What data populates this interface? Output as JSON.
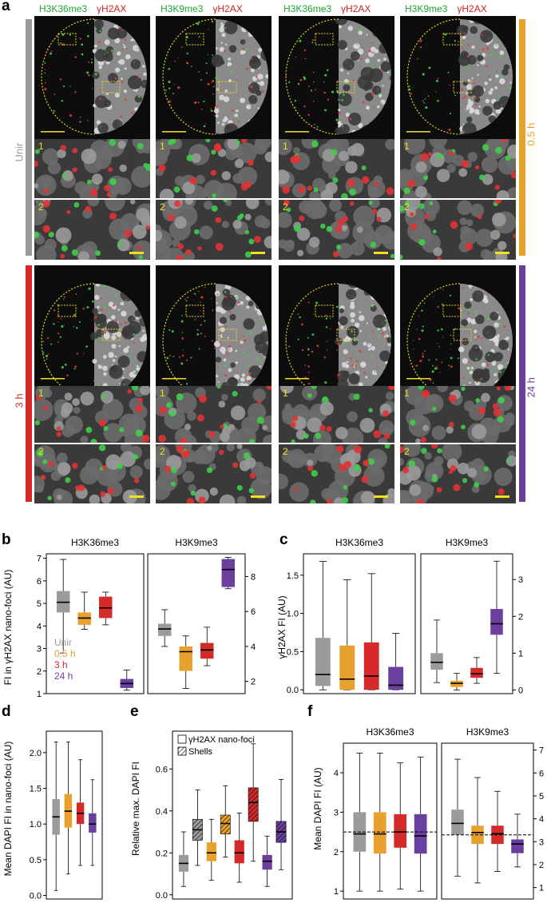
{
  "panels": {
    "a": "a",
    "b": "b",
    "c": "c",
    "d": "d",
    "e": "e",
    "f": "f"
  },
  "panel_a": {
    "channels": [
      {
        "green": "H3K36me3",
        "red": "γH2AX"
      },
      {
        "green": "H3K9me3",
        "red": "γH2AX"
      },
      {
        "green": "H3K36me3",
        "red": "γH2AX"
      },
      {
        "green": "H3K9me3",
        "red": "γH2AX"
      }
    ],
    "conditions": {
      "unir": "Unir",
      "h05": "0.5 h",
      "h3": "3 h",
      "h24": "24 h"
    },
    "inset_labels": {
      "one": "1",
      "two": "2"
    },
    "colors": {
      "unir": "#9b9b9b",
      "h05": "#e8a12c",
      "h3": "#d42a2a",
      "h24": "#6a3f9e"
    }
  },
  "chart_data": [
    {
      "type": "box",
      "panel": "b",
      "ylabel": "FI in γH2AX nano-foci (AU)",
      "subplots": [
        {
          "title": "H3K36me3",
          "yticks": [
            1,
            2,
            3,
            4,
            5,
            6,
            7
          ],
          "boxes": [
            {
              "group": "Unir",
              "whislo": 2.8,
              "q1": 4.6,
              "med": 5.05,
              "q3": 5.55,
              "whishi": 6.95
            },
            {
              "group": "0.5 h",
              "whislo": 3.85,
              "q1": 4.05,
              "med": 4.35,
              "q3": 4.6,
              "whishi": 5.5
            },
            {
              "group": "3 h",
              "whislo": 4.05,
              "q1": 4.35,
              "med": 4.8,
              "q3": 5.3,
              "whishi": 5.5
            },
            {
              "group": "24 h",
              "whislo": 1.15,
              "q1": 1.25,
              "med": 1.45,
              "q3": 1.65,
              "whishi": 2.05
            }
          ]
        },
        {
          "title": "H3K9me3",
          "yticks": [
            2,
            4,
            6,
            8
          ],
          "boxes": [
            {
              "group": "Unir",
              "whislo": 4.0,
              "q1": 4.6,
              "med": 5.0,
              "q3": 5.3,
              "whishi": 6.1
            },
            {
              "group": "0.5 h",
              "whislo": 1.6,
              "q1": 2.6,
              "med": 3.7,
              "q3": 4.0,
              "whishi": 4.6
            },
            {
              "group": "3 h",
              "whislo": 2.9,
              "q1": 3.3,
              "med": 3.8,
              "q3": 4.2,
              "whishi": 5.1
            },
            {
              "group": "24 h",
              "whislo": 7.3,
              "q1": 7.4,
              "med": 8.4,
              "q3": 9.0,
              "whishi": 9.1
            }
          ]
        }
      ],
      "legend": [
        "Unir",
        "0.5 h",
        "3 h",
        "24 h"
      ]
    },
    {
      "type": "box",
      "panel": "c",
      "ylabel": "γH2AX FI (AU)",
      "subplots": [
        {
          "title": "H3K36me3",
          "yticks": [
            0.0,
            0.5,
            1.0,
            1.5
          ],
          "boxes": [
            {
              "group": "Unir",
              "whislo": 0.0,
              "q1": 0.05,
              "med": 0.2,
              "q3": 0.68,
              "whishi": 1.68
            },
            {
              "group": "0.5 h",
              "whislo": 0.0,
              "q1": 0.0,
              "med": 0.14,
              "q3": 0.58,
              "whishi": 1.44
            },
            {
              "group": "3 h",
              "whislo": 0.0,
              "q1": 0.0,
              "med": 0.18,
              "q3": 0.62,
              "whishi": 1.52
            },
            {
              "group": "24 h",
              "whislo": 0.0,
              "q1": 0.0,
              "med": 0.06,
              "q3": 0.3,
              "whishi": 0.74
            }
          ]
        },
        {
          "title": "H3K9me3",
          "yticks": [
            0,
            1,
            2,
            3
          ],
          "boxes": [
            {
              "group": "Unir",
              "whislo": 0.2,
              "q1": 0.55,
              "med": 0.75,
              "q3": 1.0,
              "whishi": 1.9
            },
            {
              "group": "0.5 h",
              "whislo": 0.0,
              "q1": 0.08,
              "med": 0.18,
              "q3": 0.25,
              "whishi": 0.45
            },
            {
              "group": "3 h",
              "whislo": 0.18,
              "q1": 0.33,
              "med": 0.44,
              "q3": 0.6,
              "whishi": 0.88
            },
            {
              "group": "24 h",
              "whislo": 0.45,
              "q1": 1.5,
              "med": 1.8,
              "q3": 2.2,
              "whishi": 3.5
            }
          ]
        }
      ]
    },
    {
      "type": "box",
      "panel": "d",
      "ylabel": "Mean DAPI FI in nano-foci (AU)",
      "yticks": [
        0.0,
        0.5,
        1.0,
        1.5,
        2.0
      ],
      "boxes": [
        {
          "group": "Unir",
          "whislo": 0.07,
          "q1": 0.85,
          "med": 1.1,
          "q3": 1.35,
          "whishi": 2.15
        },
        {
          "group": "0.5 h",
          "whislo": 0.3,
          "q1": 0.95,
          "med": 1.18,
          "q3": 1.42,
          "whishi": 2.15
        },
        {
          "group": "3 h",
          "whislo": 0.42,
          "q1": 1.0,
          "med": 1.15,
          "q3": 1.3,
          "whishi": 1.9
        },
        {
          "group": "24 h",
          "whislo": 0.42,
          "q1": 0.88,
          "med": 1.0,
          "q3": 1.15,
          "whishi": 1.62
        }
      ]
    },
    {
      "type": "box",
      "panel": "e",
      "ylabel": "Relative max. DAPI FI",
      "yticks": [
        0.0,
        0.2,
        0.4,
        0.6
      ],
      "legend": [
        "γH2AX nano-foci",
        "Shells"
      ],
      "boxes": [
        {
          "group": "Unir",
          "kind": "nano-foci",
          "whislo": 0.04,
          "q1": 0.11,
          "med": 0.15,
          "q3": 0.19,
          "whishi": 0.3
        },
        {
          "group": "Unir",
          "kind": "shells",
          "whislo": 0.14,
          "q1": 0.26,
          "med": 0.31,
          "q3": 0.36,
          "whishi": 0.5
        },
        {
          "group": "0.5 h",
          "kind": "nano-foci",
          "whislo": 0.07,
          "q1": 0.16,
          "med": 0.2,
          "q3": 0.25,
          "whishi": 0.36
        },
        {
          "group": "0.5 h",
          "kind": "shells",
          "whislo": 0.18,
          "q1": 0.29,
          "med": 0.34,
          "q3": 0.38,
          "whishi": 0.52
        },
        {
          "group": "3 h",
          "kind": "nano-foci",
          "whislo": 0.06,
          "q1": 0.15,
          "med": 0.2,
          "q3": 0.26,
          "whishi": 0.39
        },
        {
          "group": "3 h",
          "kind": "shells",
          "whislo": 0.16,
          "q1": 0.35,
          "med": 0.44,
          "q3": 0.51,
          "whishi": 0.72
        },
        {
          "group": "24 h",
          "kind": "nano-foci",
          "whislo": 0.04,
          "q1": 0.12,
          "med": 0.16,
          "q3": 0.19,
          "whishi": 0.28
        },
        {
          "group": "24 h",
          "kind": "shells",
          "whislo": 0.12,
          "q1": 0.25,
          "med": 0.3,
          "q3": 0.35,
          "whishi": 0.55
        }
      ]
    },
    {
      "type": "box",
      "panel": "f",
      "ylabel": "Mean DAPI FI (AU)",
      "subplots": [
        {
          "title": "H3K36me3",
          "yticks": [
            1,
            2,
            3,
            4
          ],
          "reference_line": 2.5,
          "boxes": [
            {
              "group": "Unir",
              "whislo": 1.0,
              "q1": 2.0,
              "med": 2.45,
              "q3": 3.0,
              "whishi": 4.5
            },
            {
              "group": "0.5 h",
              "whislo": 1.0,
              "q1": 1.95,
              "med": 2.45,
              "q3": 3.0,
              "whishi": 4.5
            },
            {
              "group": "3 h",
              "whislo": 1.05,
              "q1": 2.1,
              "med": 2.5,
              "q3": 2.95,
              "whishi": 4.25
            },
            {
              "group": "24 h",
              "whislo": 1.0,
              "q1": 1.95,
              "med": 2.4,
              "q3": 2.95,
              "whishi": 4.4
            }
          ]
        },
        {
          "title": "H3K9me3",
          "yticks": [
            1,
            2,
            3,
            4,
            5,
            6,
            7
          ],
          "reference_line": 3.3,
          "boxes": [
            {
              "group": "Unir",
              "whislo": 1.5,
              "q1": 3.3,
              "med": 3.8,
              "q3": 4.4,
              "whishi": 6.6
            },
            {
              "group": "0.5 h",
              "whislo": 1.2,
              "q1": 2.9,
              "med": 3.4,
              "q3": 3.7,
              "whishi": 5.8
            },
            {
              "group": "3 h",
              "whislo": 1.7,
              "q1": 2.9,
              "med": 3.35,
              "q3": 3.7,
              "whishi": 5.2
            },
            {
              "group": "24 h",
              "whislo": 1.9,
              "q1": 2.5,
              "med": 2.9,
              "q3": 3.1,
              "whishi": 4.2
            }
          ]
        }
      ]
    }
  ]
}
